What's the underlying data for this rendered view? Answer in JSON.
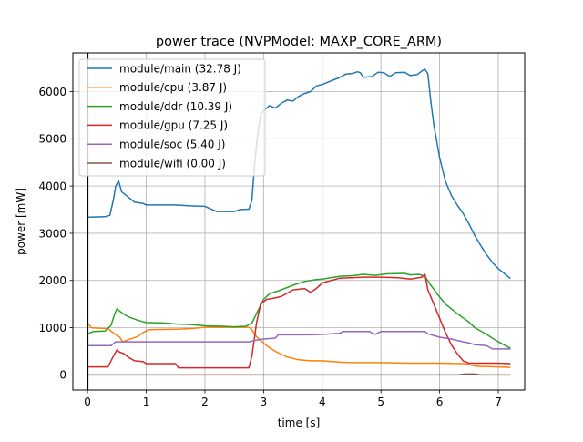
{
  "chart_data": {
    "type": "line",
    "title": "power trace (NVPModel: MAXP_CORE_ARM)",
    "xlabel": "time [s]",
    "ylabel": "power [mW]",
    "xlim": [
      -0.25,
      7.45
    ],
    "ylim": [
      -320,
      6820
    ],
    "xticks": [
      0,
      1,
      2,
      3,
      4,
      5,
      6,
      7
    ],
    "xtick_labels": [
      "0",
      "1",
      "2",
      "3",
      "4",
      "5",
      "6",
      "7"
    ],
    "yticks": [
      0,
      1000,
      2000,
      3000,
      4000,
      5000,
      6000
    ],
    "ytick_labels": [
      "0",
      "1000",
      "2000",
      "3000",
      "4000",
      "5000",
      "6000"
    ],
    "grid": true,
    "legend_position": "top-left",
    "vertical_marker_x": 0.0,
    "series": [
      {
        "name": "module/main (32.78 J)",
        "color": "#1f77b4",
        "points": [
          [
            0.02,
            3340
          ],
          [
            0.3,
            3350
          ],
          [
            0.38,
            3380
          ],
          [
            0.44,
            3700
          ],
          [
            0.48,
            4000
          ],
          [
            0.53,
            4110
          ],
          [
            0.58,
            3880
          ],
          [
            0.7,
            3760
          ],
          [
            0.8,
            3660
          ],
          [
            0.95,
            3630
          ],
          [
            1.0,
            3600
          ],
          [
            1.5,
            3600
          ],
          [
            1.75,
            3580
          ],
          [
            2.0,
            3570
          ],
          [
            2.2,
            3460
          ],
          [
            2.5,
            3460
          ],
          [
            2.6,
            3500
          ],
          [
            2.75,
            3510
          ],
          [
            2.8,
            3700
          ],
          [
            2.85,
            4500
          ],
          [
            2.9,
            5100
          ],
          [
            2.95,
            5500
          ],
          [
            3.0,
            5600
          ],
          [
            3.1,
            5700
          ],
          [
            3.2,
            5650
          ],
          [
            3.3,
            5750
          ],
          [
            3.4,
            5820
          ],
          [
            3.5,
            5800
          ],
          [
            3.6,
            5900
          ],
          [
            3.7,
            5960
          ],
          [
            3.8,
            6000
          ],
          [
            3.9,
            6120
          ],
          [
            4.0,
            6150
          ],
          [
            4.1,
            6200
          ],
          [
            4.2,
            6250
          ],
          [
            4.3,
            6300
          ],
          [
            4.4,
            6370
          ],
          [
            4.5,
            6380
          ],
          [
            4.6,
            6420
          ],
          [
            4.65,
            6400
          ],
          [
            4.7,
            6300
          ],
          [
            4.85,
            6320
          ],
          [
            4.95,
            6410
          ],
          [
            5.05,
            6400
          ],
          [
            5.15,
            6320
          ],
          [
            5.25,
            6400
          ],
          [
            5.4,
            6410
          ],
          [
            5.5,
            6340
          ],
          [
            5.62,
            6360
          ],
          [
            5.7,
            6440
          ],
          [
            5.75,
            6470
          ],
          [
            5.8,
            6380
          ],
          [
            5.85,
            5800
          ],
          [
            5.9,
            5300
          ],
          [
            6.0,
            4600
          ],
          [
            6.1,
            4100
          ],
          [
            6.2,
            3800
          ],
          [
            6.3,
            3600
          ],
          [
            6.4,
            3420
          ],
          [
            6.5,
            3200
          ],
          [
            6.6,
            2950
          ],
          [
            6.7,
            2740
          ],
          [
            6.8,
            2550
          ],
          [
            6.9,
            2380
          ],
          [
            7.0,
            2250
          ],
          [
            7.1,
            2150
          ],
          [
            7.2,
            2050
          ]
        ]
      },
      {
        "name": "module/cpu (3.87 J)",
        "color": "#ff7f0e",
        "points": [
          [
            0.02,
            1080
          ],
          [
            0.06,
            1000
          ],
          [
            0.35,
            980
          ],
          [
            0.45,
            880
          ],
          [
            0.55,
            800
          ],
          [
            0.6,
            700
          ],
          [
            0.7,
            750
          ],
          [
            0.85,
            810
          ],
          [
            0.95,
            900
          ],
          [
            1.05,
            960
          ],
          [
            1.5,
            970
          ],
          [
            1.75,
            980
          ],
          [
            2.0,
            1010
          ],
          [
            2.5,
            1010
          ],
          [
            2.75,
            1010
          ],
          [
            2.8,
            960
          ],
          [
            2.85,
            850
          ],
          [
            2.95,
            730
          ],
          [
            3.05,
            620
          ],
          [
            3.2,
            500
          ],
          [
            3.4,
            380
          ],
          [
            3.6,
            320
          ],
          [
            3.8,
            300
          ],
          [
            4.0,
            300
          ],
          [
            4.3,
            270
          ],
          [
            4.5,
            260
          ],
          [
            5.0,
            260
          ],
          [
            5.5,
            250
          ],
          [
            5.8,
            250
          ],
          [
            6.0,
            250
          ],
          [
            6.4,
            240
          ],
          [
            6.5,
            220
          ],
          [
            6.6,
            190
          ],
          [
            6.7,
            180
          ],
          [
            7.0,
            170
          ],
          [
            7.2,
            160
          ]
        ]
      },
      {
        "name": "module/ddr (10.39 J)",
        "color": "#2ca02c",
        "points": [
          [
            0.02,
            880
          ],
          [
            0.1,
            920
          ],
          [
            0.3,
            930
          ],
          [
            0.4,
            1050
          ],
          [
            0.46,
            1280
          ],
          [
            0.5,
            1400
          ],
          [
            0.6,
            1300
          ],
          [
            0.7,
            1230
          ],
          [
            0.85,
            1160
          ],
          [
            1.0,
            1110
          ],
          [
            1.3,
            1100
          ],
          [
            1.5,
            1080
          ],
          [
            1.75,
            1070
          ],
          [
            2.0,
            1040
          ],
          [
            2.3,
            1030
          ],
          [
            2.5,
            1020
          ],
          [
            2.7,
            1030
          ],
          [
            2.8,
            1100
          ],
          [
            2.9,
            1350
          ],
          [
            3.0,
            1600
          ],
          [
            3.1,
            1720
          ],
          [
            3.3,
            1800
          ],
          [
            3.5,
            1900
          ],
          [
            3.7,
            1980
          ],
          [
            3.9,
            2020
          ],
          [
            4.0,
            2030
          ],
          [
            4.3,
            2090
          ],
          [
            4.5,
            2100
          ],
          [
            4.7,
            2130
          ],
          [
            4.9,
            2110
          ],
          [
            5.1,
            2140
          ],
          [
            5.4,
            2150
          ],
          [
            5.5,
            2120
          ],
          [
            5.65,
            2130
          ],
          [
            5.75,
            2090
          ],
          [
            5.85,
            1900
          ],
          [
            6.0,
            1650
          ],
          [
            6.1,
            1500
          ],
          [
            6.3,
            1300
          ],
          [
            6.5,
            1120
          ],
          [
            6.6,
            1000
          ],
          [
            6.8,
            860
          ],
          [
            7.0,
            700
          ],
          [
            7.2,
            570
          ]
        ]
      },
      {
        "name": "module/gpu (7.25 J)",
        "color": "#d62728",
        "points": [
          [
            0.02,
            170
          ],
          [
            0.35,
            170
          ],
          [
            0.42,
            350
          ],
          [
            0.5,
            530
          ],
          [
            0.55,
            480
          ],
          [
            0.62,
            450
          ],
          [
            0.7,
            370
          ],
          [
            0.8,
            300
          ],
          [
            0.95,
            280
          ],
          [
            1.0,
            240
          ],
          [
            1.5,
            240
          ],
          [
            1.55,
            150
          ],
          [
            2.0,
            150
          ],
          [
            2.5,
            150
          ],
          [
            2.75,
            150
          ],
          [
            2.8,
            400
          ],
          [
            2.88,
            1100
          ],
          [
            2.95,
            1500
          ],
          [
            3.05,
            1600
          ],
          [
            3.15,
            1620
          ],
          [
            3.3,
            1660
          ],
          [
            3.5,
            1800
          ],
          [
            3.7,
            1830
          ],
          [
            3.8,
            1750
          ],
          [
            3.9,
            1830
          ],
          [
            4.0,
            1950
          ],
          [
            4.3,
            2050
          ],
          [
            4.5,
            2060
          ],
          [
            4.7,
            2070
          ],
          [
            5.0,
            2070
          ],
          [
            5.3,
            2060
          ],
          [
            5.5,
            2030
          ],
          [
            5.7,
            2070
          ],
          [
            5.75,
            2130
          ],
          [
            5.8,
            1800
          ],
          [
            5.9,
            1500
          ],
          [
            6.0,
            1200
          ],
          [
            6.1,
            900
          ],
          [
            6.2,
            640
          ],
          [
            6.3,
            450
          ],
          [
            6.4,
            300
          ],
          [
            6.5,
            250
          ],
          [
            7.0,
            250
          ],
          [
            7.2,
            240
          ]
        ]
      },
      {
        "name": "module/soc (5.40 J)",
        "color": "#9467bd",
        "points": [
          [
            0.02,
            620
          ],
          [
            0.4,
            620
          ],
          [
            0.48,
            700
          ],
          [
            1.0,
            700
          ],
          [
            1.5,
            700
          ],
          [
            2.0,
            700
          ],
          [
            2.5,
            700
          ],
          [
            2.75,
            700
          ],
          [
            2.85,
            730
          ],
          [
            3.0,
            760
          ],
          [
            3.2,
            780
          ],
          [
            3.25,
            850
          ],
          [
            3.5,
            850
          ],
          [
            3.8,
            850
          ],
          [
            4.0,
            860
          ],
          [
            4.3,
            880
          ],
          [
            4.35,
            920
          ],
          [
            4.8,
            920
          ],
          [
            4.9,
            860
          ],
          [
            5.0,
            920
          ],
          [
            5.5,
            920
          ],
          [
            5.75,
            920
          ],
          [
            5.8,
            870
          ],
          [
            6.0,
            800
          ],
          [
            6.2,
            760
          ],
          [
            6.4,
            700
          ],
          [
            6.5,
            680
          ],
          [
            6.6,
            640
          ],
          [
            6.8,
            620
          ],
          [
            6.9,
            550
          ],
          [
            7.2,
            550
          ]
        ]
      },
      {
        "name": "module/wifi (0.00 J)",
        "color": "#8c564b",
        "points": [
          [
            0.02,
            0
          ],
          [
            6.3,
            0
          ],
          [
            6.45,
            20
          ],
          [
            6.6,
            20
          ],
          [
            6.7,
            0
          ],
          [
            7.2,
            0
          ]
        ]
      }
    ]
  }
}
